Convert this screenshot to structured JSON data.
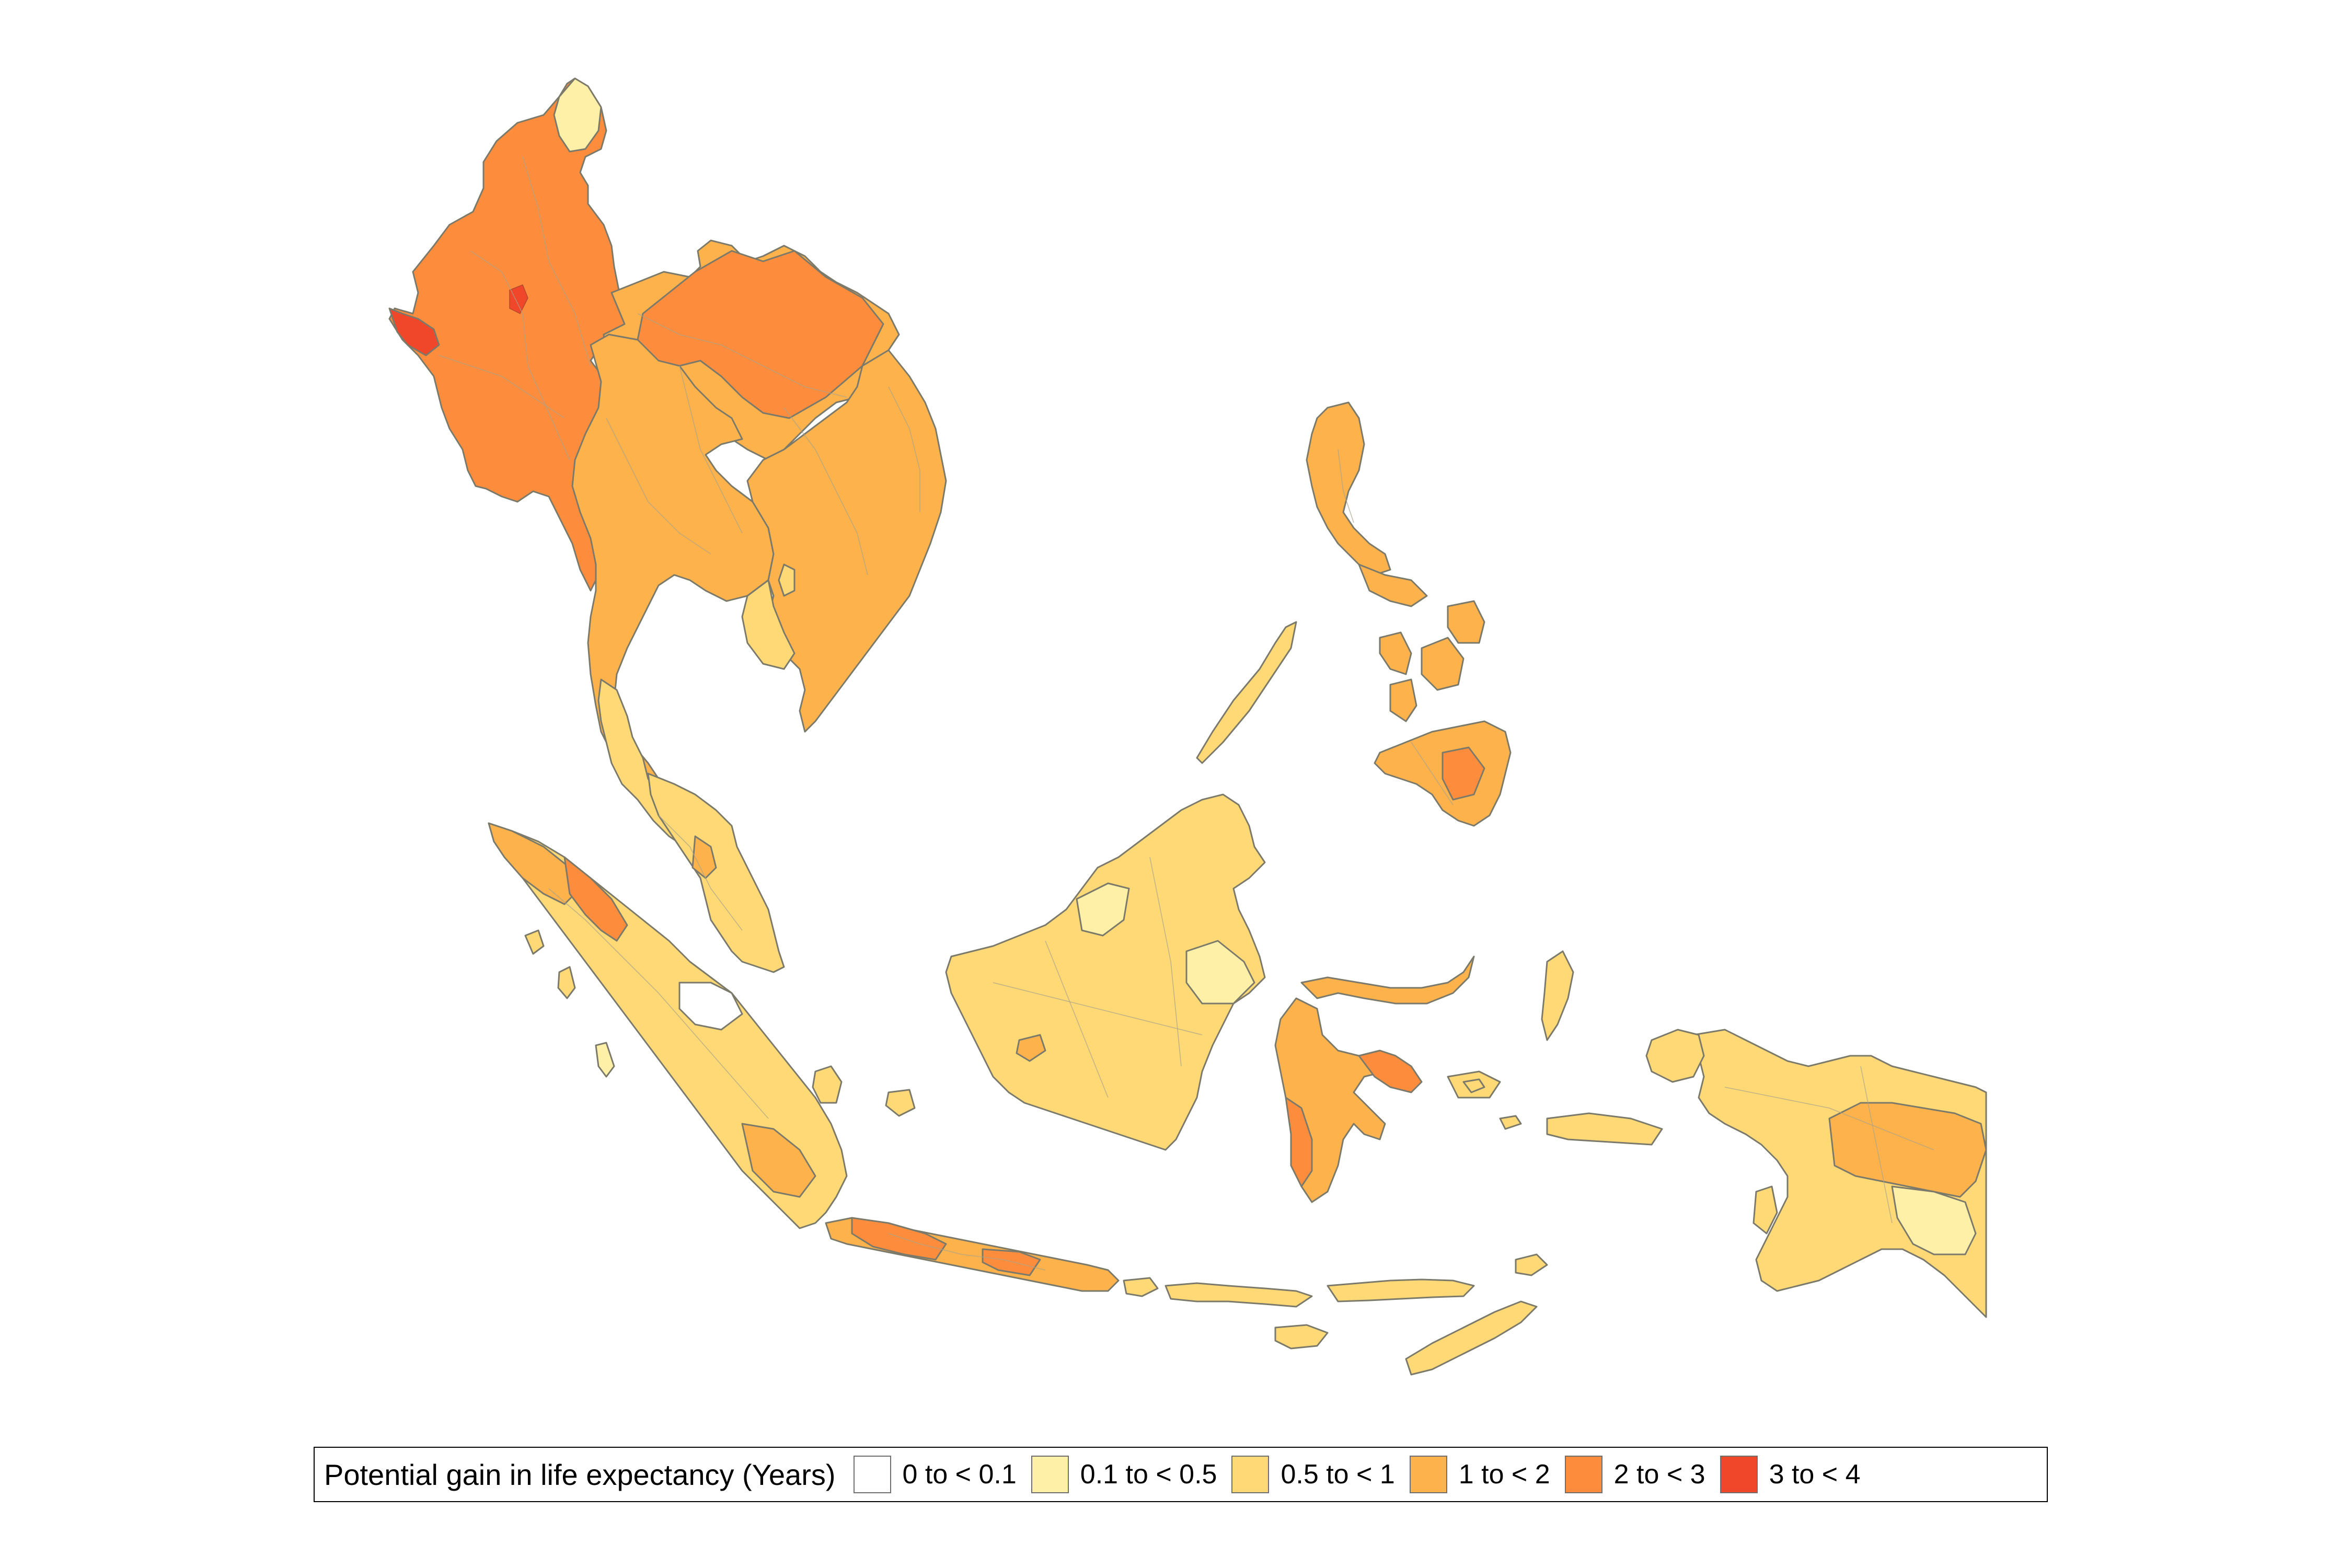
{
  "legend": {
    "title": "Potential gain in life expectancy (Years)",
    "classes": [
      {
        "label": "0 to < 0.1",
        "color": "#ffffff"
      },
      {
        "label": "0.1 to < 0.5",
        "color": "#fff0a8"
      },
      {
        "label": "0.5 to < 1",
        "color": "#fed976"
      },
      {
        "label": "1 to < 2",
        "color": "#feb24c"
      },
      {
        "label": "2 to < 3",
        "color": "#fd8d3c"
      },
      {
        "label": "3 to < 4",
        "color": "#f0462a"
      }
    ]
  },
  "style": {
    "border_color": "#7b7a6a"
  }
}
